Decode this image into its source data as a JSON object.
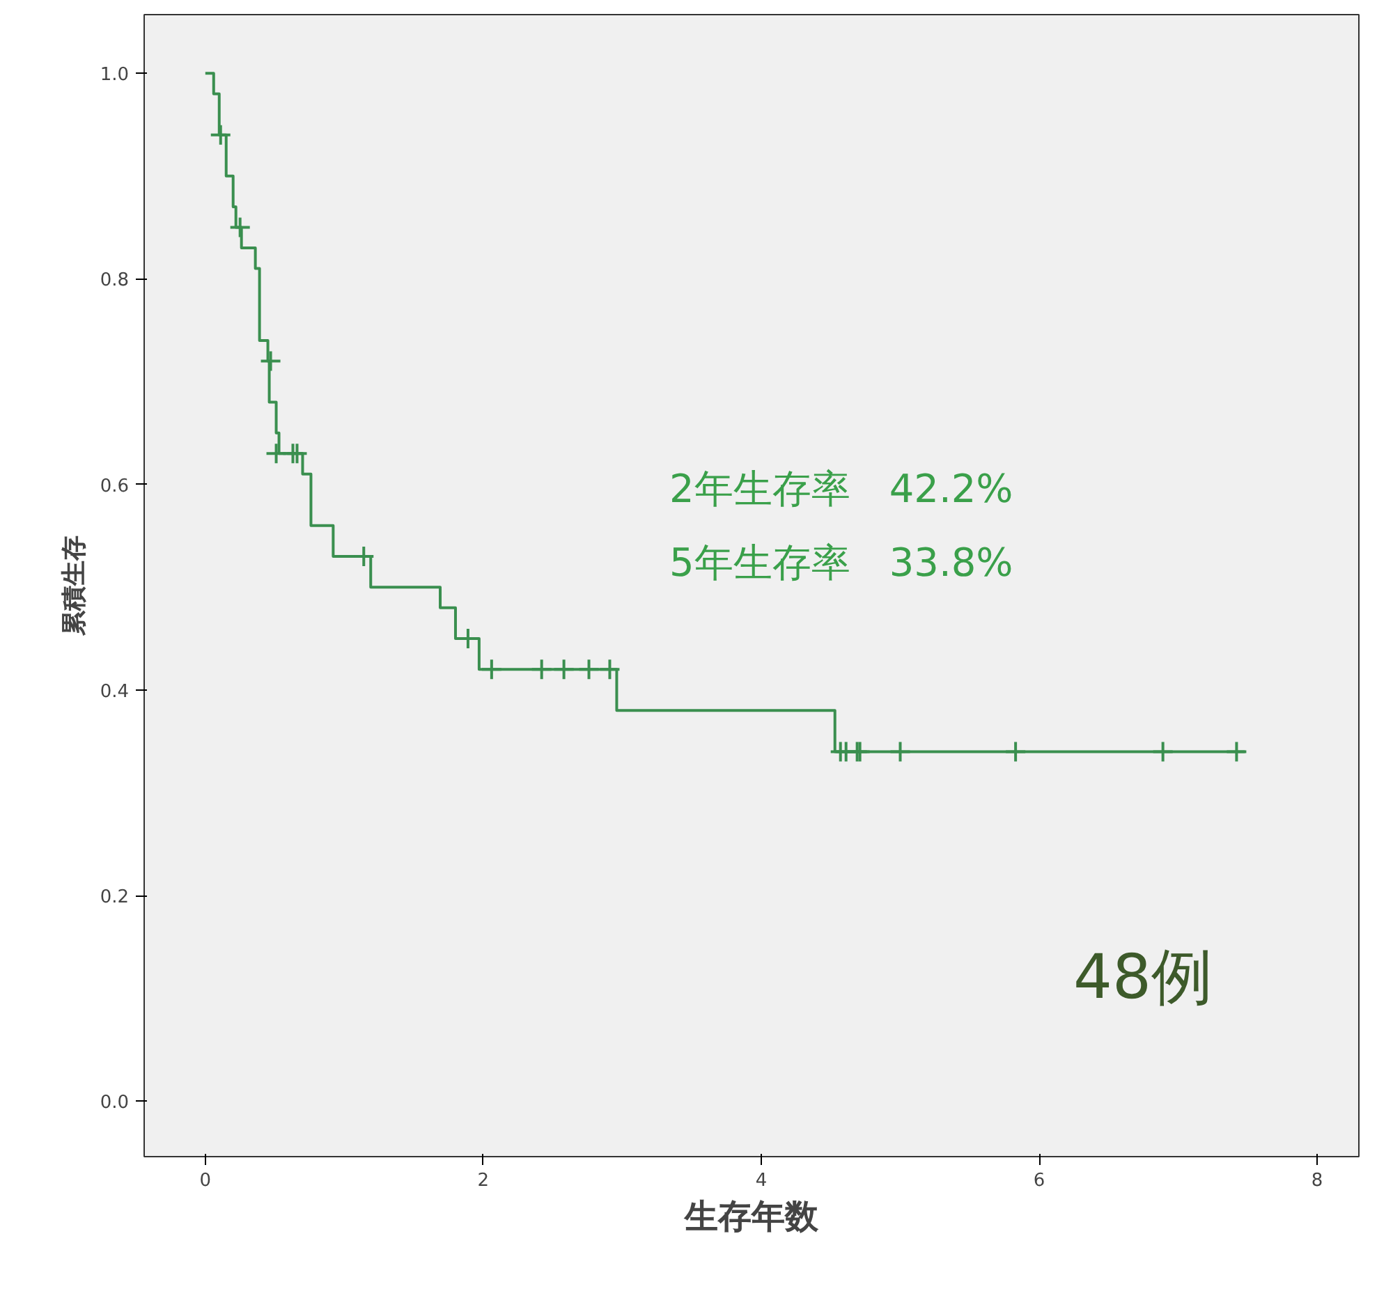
{
  "chart_data": {
    "type": "step",
    "xlabel": "生存年数",
    "ylabel": "累積生存",
    "xlim": [
      -0.44,
      8.3
    ],
    "ylim": [
      -0.054,
      1.057
    ],
    "xticks": [
      0,
      2,
      4,
      6,
      8
    ],
    "yticks": [
      {
        "value": 0,
        "label": "0.0"
      },
      0.2,
      0.4,
      0.6,
      0.8,
      {
        "value": 1,
        "label": "1.0"
      }
    ],
    "grid": false,
    "series": [
      {
        "color": "#3a8f4f",
        "marker": "none",
        "x": [
          0,
          0.06,
          0.1,
          0.15,
          0.2,
          0.22,
          0.26,
          0.36,
          0.39,
          0.45,
          0.46,
          0.51,
          0.53,
          0.7,
          0.76,
          0.92,
          1.19,
          1.69,
          1.8,
          1.97,
          2.96,
          4.53,
          7.48
        ],
        "values": [
          1.0,
          0.98,
          0.94,
          0.9,
          0.87,
          0.85,
          0.83,
          0.81,
          0.74,
          0.72,
          0.68,
          0.65,
          0.63,
          0.61,
          0.56,
          0.53,
          0.5,
          0.48,
          0.45,
          0.42,
          0.38,
          0.34,
          0.34
        ]
      },
      {
        "type": "scatter",
        "color": "#3a8f4f",
        "marker": "cross",
        "x": [
          0.11,
          0.25,
          0.47,
          0.51,
          0.63,
          0.66,
          1.14,
          1.89,
          2.06,
          2.42,
          2.58,
          2.76,
          2.91,
          4.57,
          4.61,
          4.69,
          4.71,
          5.0,
          5.83,
          6.89,
          7.42
        ],
        "values": [
          0.94,
          0.85,
          0.72,
          0.63,
          0.63,
          0.63,
          0.53,
          0.45,
          0.42,
          0.42,
          0.42,
          0.42,
          0.42,
          0.34,
          0.34,
          0.34,
          0.34,
          0.34,
          0.34,
          0.34,
          0.34
        ]
      }
    ],
    "annotations": [
      "2年生存率　42.2%",
      "5年生存率　33.8%",
      "48例"
    ]
  }
}
